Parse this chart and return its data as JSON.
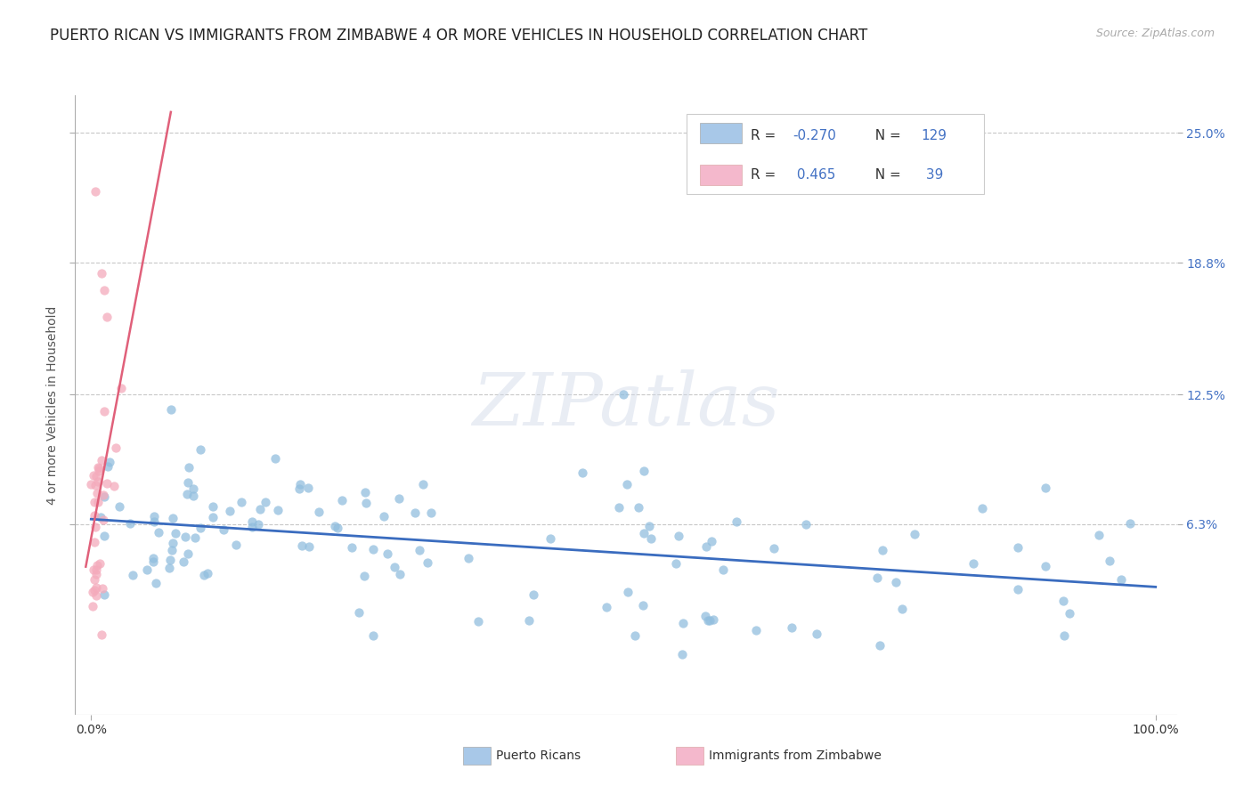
{
  "title": "PUERTO RICAN VS IMMIGRANTS FROM ZIMBABWE 4 OR MORE VEHICLES IN HOUSEHOLD CORRELATION CHART",
  "source": "Source: ZipAtlas.com",
  "ylabel": "4 or more Vehicles in Household",
  "ytick_vals": [
    0.063,
    0.125,
    0.188,
    0.25
  ],
  "ytick_labels": [
    "6.3%",
    "12.5%",
    "18.8%",
    "25.0%"
  ],
  "xlim": [
    -0.015,
    1.02
  ],
  "ylim": [
    -0.028,
    0.268
  ],
  "scatter_size": 55,
  "scatter_alpha": 0.75,
  "blue_color": "#92bede",
  "pink_color": "#f4aabb",
  "blue_line_color": "#3a6cbf",
  "pink_line_color": "#e0607a",
  "watermark": "ZIPatlas",
  "background_color": "#ffffff",
  "grid_color": "#c8c8c8",
  "title_fontsize": 12,
  "axis_label_fontsize": 10,
  "tick_fontsize": 10,
  "right_tick_color": "#4472c4",
  "legend_blue_face": "#a8c8e8",
  "legend_pink_face": "#f4b8cc",
  "legend_r_color": "#333333",
  "legend_val_color": "#4472c4"
}
